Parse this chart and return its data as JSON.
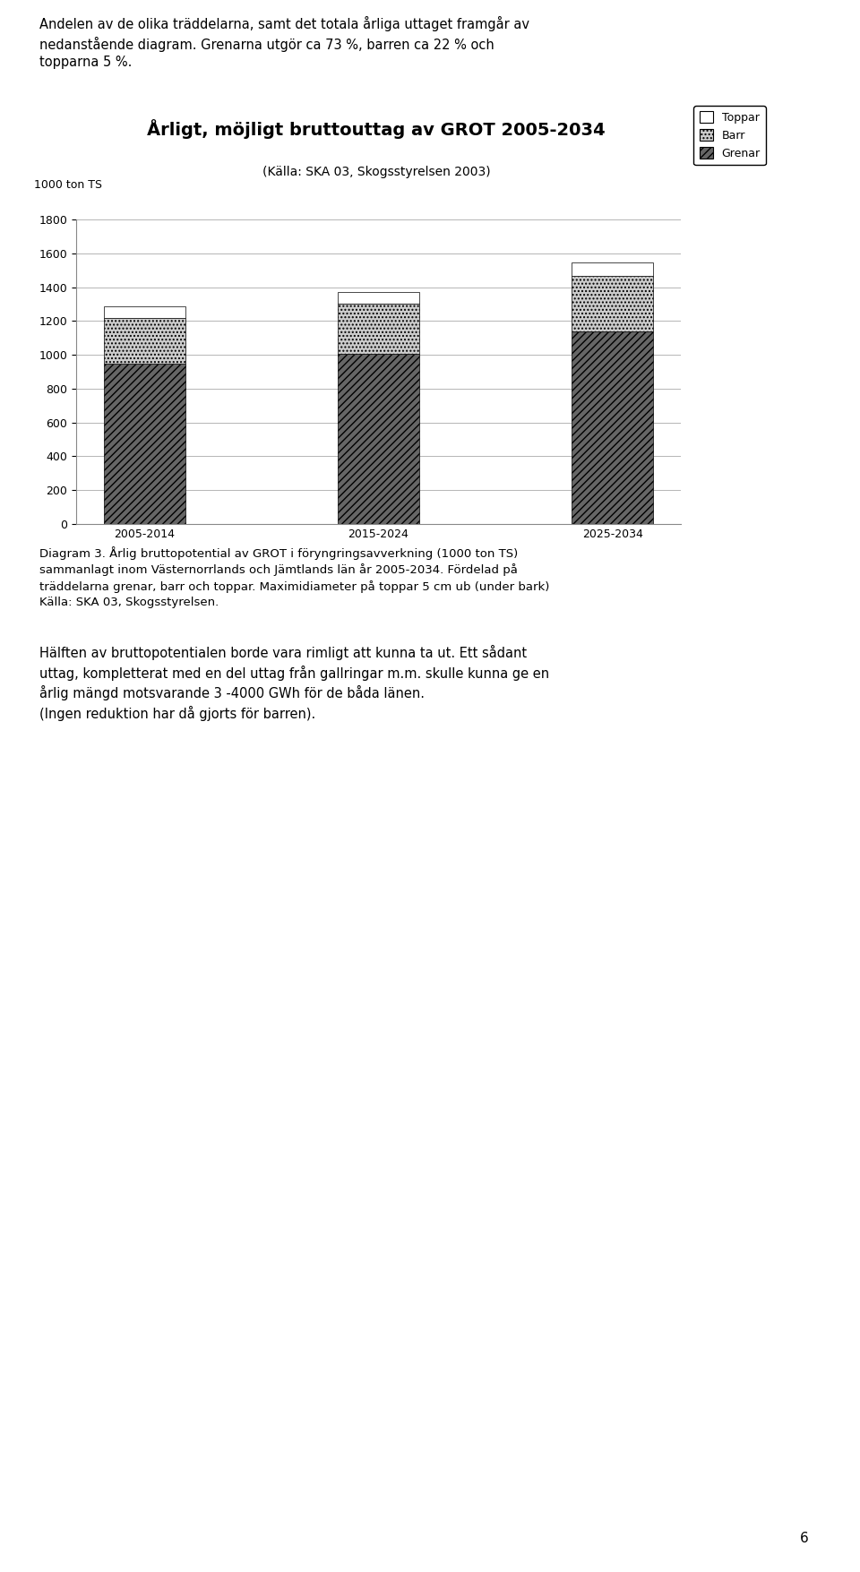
{
  "title": "Årligt, möjligt bruttouttag av GROT 2005-2034",
  "subtitle": "(Källa: SKA 03, Skogsstyrelsen 2003)",
  "ylabel": "1000 ton TS",
  "categories": [
    "2005-2014",
    "2015-2024",
    "2025-2034"
  ],
  "grenar": [
    950,
    1005,
    1140
  ],
  "barr": [
    270,
    295,
    325
  ],
  "toppar": [
    65,
    70,
    80
  ],
  "ylim": [
    0,
    1800
  ],
  "yticks": [
    0,
    200,
    400,
    600,
    800,
    1000,
    1200,
    1400,
    1600,
    1800
  ],
  "color_grenar": "#666666",
  "color_barr": "#cccccc",
  "color_toppar": "#ffffff",
  "bar_width": 0.35,
  "background_color": "#ffffff",
  "title_fontsize": 14,
  "subtitle_fontsize": 10,
  "axis_fontsize": 9,
  "tick_fontsize": 9,
  "top_text": "Andelen av de olika träddelarna, samt det totala årliga uttaget framgår av\nnedanstående diagram. Grenarna utgör ca 73 %, barren ca 22 % och\ntopparna 5 %.",
  "diagram_caption": "Diagram 3. Årlig bruttopotential av GROT i föryngringsavverkning (1000 ton TS)\nsammanlagt inom Västernorrlands och Jämtlands län år 2005-2034. Fördelad på\nträddelarna grenar, barr och toppar. Maximidiameter på toppar 5 cm ub (under bark)\nKälla: SKA 03, Skogsstyrelsen.",
  "para1": "Hälften av bruttopotentialen borde vara rimligt att kunna ta ut. Ett sådant\nuttag, kompletterat med en del uttag från gallringar m.m. skulle kunna ge en\nårlig mängd motsvarande 3 -4000 GWh för de båda länen.\n(Ingen reduktion har då gjorts för barren).",
  "page_number": "6"
}
